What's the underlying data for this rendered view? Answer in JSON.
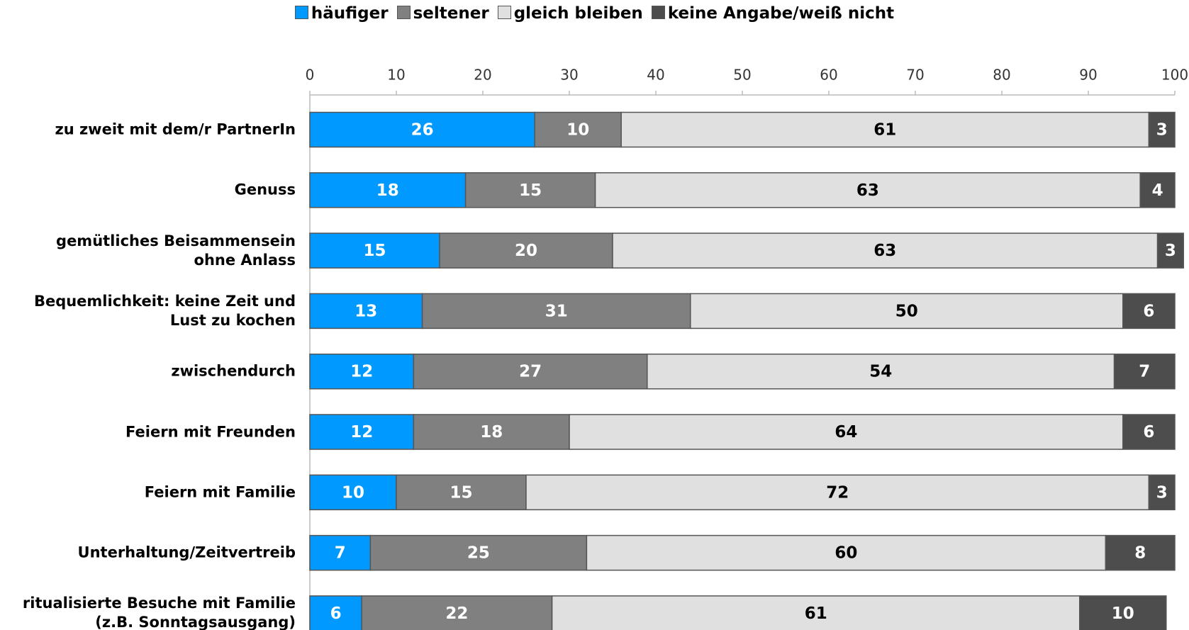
{
  "chart_data": {
    "type": "stacked_barh",
    "categories": [
      "zu zweit mit dem/r PartnerIn",
      "Genuss",
      "gemütliches Beisammensein ohne Anlass",
      "Bequemlichkeit: keine Zeit und Lust zu kochen",
      "zwischendurch",
      "Feiern mit Freunden",
      "Feiern mit Familie",
      "Unterhaltung/Zeitvertreib",
      "ritualisierte Besuche mit Familie (z.B. Sonntagsausgang)"
    ],
    "series": [
      {
        "name": "häufiger",
        "color": "#0099ff",
        "label_color": "#ffffff",
        "values": [
          26,
          18,
          15,
          13,
          12,
          12,
          10,
          7,
          6
        ]
      },
      {
        "name": "seltener",
        "color": "#808080",
        "label_color": "#ffffff",
        "values": [
          10,
          15,
          20,
          31,
          27,
          18,
          15,
          25,
          22
        ]
      },
      {
        "name": "gleich bleiben",
        "color": "#e0e0e0",
        "label_color": "#000000",
        "values": [
          61,
          63,
          63,
          50,
          54,
          64,
          72,
          60,
          61
        ]
      },
      {
        "name": "keine Angabe/weiß nicht",
        "color": "#4d4d4d",
        "label_color": "#ffffff",
        "values": [
          3,
          4,
          3,
          6,
          7,
          6,
          3,
          8,
          10
        ]
      }
    ],
    "xlim": [
      0,
      100
    ],
    "xticks": [
      0,
      10,
      20,
      30,
      40,
      50,
      60,
      70,
      80,
      90,
      100
    ],
    "legend": "top"
  }
}
